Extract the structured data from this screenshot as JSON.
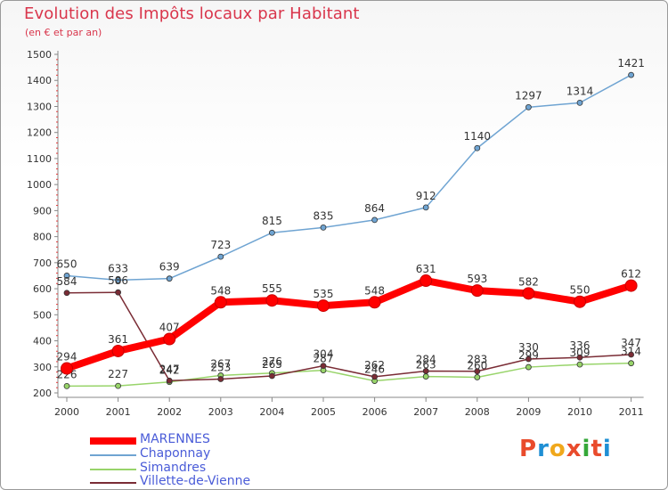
{
  "header": {
    "title": "Evolution des Impôts locaux par Habitant",
    "subtitle": "(en € et par an)"
  },
  "logo": {
    "text": "Proxiti",
    "colors": [
      "#e94b2c",
      "#1f8fd4",
      "#f0a81c",
      "#e94b2c",
      "#35a838",
      "#e94b2c",
      "#1f8fd4"
    ]
  },
  "chart_data": {
    "type": "line",
    "categories": [
      "2000",
      "2001",
      "2002",
      "2003",
      "2004",
      "2005",
      "2006",
      "2007",
      "2008",
      "2009",
      "2010",
      "2011"
    ],
    "ylim": [
      200,
      1500
    ],
    "yticks": [
      200,
      300,
      400,
      500,
      600,
      700,
      800,
      900,
      1000,
      1100,
      1200,
      1300,
      1400,
      1500
    ],
    "grid": false,
    "legend_position": "bottom-left",
    "series": [
      {
        "name": "MARENNES",
        "color": "#ff0000",
        "values": [
          294,
          361,
          407,
          548,
          555,
          535,
          548,
          631,
          593,
          582,
          550,
          612
        ]
      },
      {
        "name": "Chaponnay",
        "color": "#6fa4d2",
        "values": [
          650,
          633,
          639,
          723,
          815,
          835,
          864,
          912,
          1140,
          1297,
          1314,
          1421
        ]
      },
      {
        "name": "Simandres",
        "color": "#98d46a",
        "values": [
          226,
          227,
          242,
          267,
          276,
          287,
          246,
          263,
          260,
          299,
          309,
          314
        ]
      },
      {
        "name": "Villette-de-Vienne",
        "color": "#7a2c35",
        "values": [
          584,
          586,
          247,
          253,
          265,
          304,
          262,
          284,
          283,
          330,
          336,
          347
        ]
      }
    ]
  }
}
